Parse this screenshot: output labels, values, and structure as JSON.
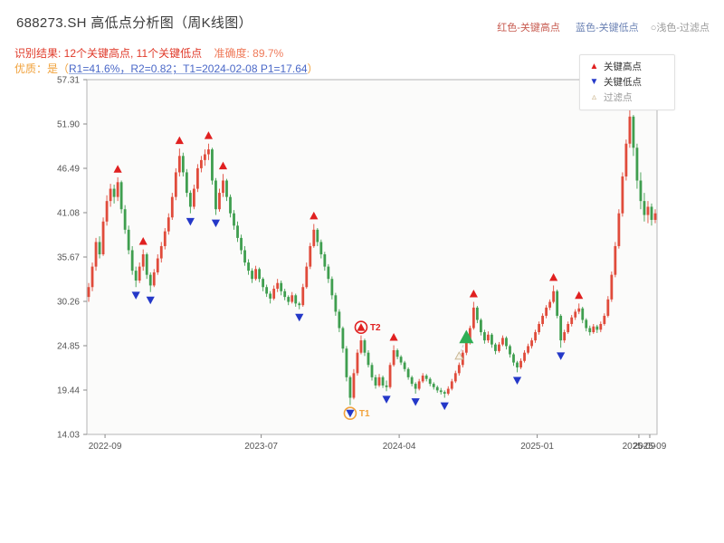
{
  "header": {
    "title": "688273.SH 高低点分析图（周K线图）",
    "color_legend": {
      "high": "红色-关键高点",
      "low": "蓝色-关键低点",
      "filter": "○浅色-过滤点"
    },
    "result": {
      "summary": "识别结果: 12个关键高点, 11个关键低点",
      "accuracy": "准确度: 89.7%"
    },
    "quality": {
      "prefix": "优质：是（",
      "detail": "R1=41.6%，R2=0.82；T1=2024-02-08 P1=17.64",
      "suffix": "）"
    }
  },
  "legend_box": {
    "high": "关键高点",
    "low": "关键低点",
    "filter": "过滤点"
  },
  "chart_data": {
    "type": "candlestick",
    "title": "688273.SH 高低点分析图（周K线图）",
    "interval": "weekly",
    "ylim": [
      14.03,
      57.31
    ],
    "y_ticks": [
      57.31,
      51.9,
      46.49,
      41.08,
      35.67,
      30.26,
      24.85,
      19.44,
      14.03
    ],
    "x_ticks": [
      {
        "label": "2022-09",
        "week": 4.5
      },
      {
        "label": "2023-07",
        "week": 47.5
      },
      {
        "label": "2024-04",
        "week": 85.5
      },
      {
        "label": "2025-01",
        "week": 123.5
      },
      {
        "label": "2025-09",
        "week": 151.5
      },
      {
        "label": "2025-09",
        "week": 154.5
      }
    ],
    "candles": [
      [
        30.8,
        32.5,
        30.2,
        32.0
      ],
      [
        32.0,
        35.0,
        31.5,
        34.5
      ],
      [
        34.5,
        38.0,
        34.0,
        37.5
      ],
      [
        37.5,
        38.2,
        35.5,
        36.0
      ],
      [
        36.0,
        40.5,
        35.8,
        40.0
      ],
      [
        40.0,
        43.2,
        39.5,
        42.5
      ],
      [
        42.5,
        44.6,
        41.8,
        44.0
      ],
      [
        44.0,
        44.5,
        42.2,
        43.0
      ],
      [
        43.0,
        45.4,
        42.5,
        44.8
      ],
      [
        44.8,
        45.0,
        41.0,
        41.5
      ],
      [
        41.5,
        42.0,
        38.5,
        39.0
      ],
      [
        39.0,
        39.5,
        36.0,
        36.5
      ],
      [
        36.5,
        37.0,
        33.5,
        34.0
      ],
      [
        34.0,
        34.5,
        32.0,
        32.8
      ],
      [
        32.8,
        35.0,
        32.5,
        34.5
      ],
      [
        34.5,
        36.6,
        34.0,
        36.0
      ],
      [
        36.0,
        36.2,
        33.0,
        33.5
      ],
      [
        33.5,
        33.8,
        31.4,
        32.2
      ],
      [
        32.2,
        34.2,
        32.0,
        33.8
      ],
      [
        33.8,
        36.0,
        33.5,
        35.5
      ],
      [
        35.5,
        37.5,
        35.0,
        37.0
      ],
      [
        37.0,
        39.2,
        36.6,
        38.8
      ],
      [
        38.8,
        41.0,
        38.4,
        40.5
      ],
      [
        40.5,
        43.5,
        40.2,
        43.0
      ],
      [
        43.0,
        46.5,
        42.6,
        46.0
      ],
      [
        46.0,
        48.9,
        45.5,
        48.0
      ],
      [
        48.0,
        48.4,
        45.5,
        46.0
      ],
      [
        46.0,
        46.4,
        43.0,
        43.5
      ],
      [
        43.5,
        43.8,
        41.0,
        41.8
      ],
      [
        41.8,
        44.5,
        41.5,
        44.0
      ],
      [
        44.0,
        47.0,
        43.6,
        46.5
      ],
      [
        46.5,
        48.0,
        46.0,
        47.5
      ],
      [
        47.5,
        48.8,
        46.8,
        48.2
      ],
      [
        48.2,
        49.5,
        47.5,
        48.8
      ],
      [
        48.8,
        49.0,
        44.5,
        45.0
      ],
      [
        45.0,
        45.3,
        40.8,
        41.5
      ],
      [
        41.5,
        44.0,
        41.2,
        43.5
      ],
      [
        43.5,
        45.8,
        43.0,
        45.0
      ],
      [
        45.0,
        45.2,
        42.5,
        43.0
      ],
      [
        43.0,
        43.3,
        40.5,
        41.0
      ],
      [
        41.0,
        41.4,
        39.0,
        39.5
      ],
      [
        39.5,
        40.0,
        37.5,
        38.0
      ],
      [
        38.0,
        38.4,
        36.0,
        36.5
      ],
      [
        36.5,
        37.0,
        34.6,
        35.0
      ],
      [
        35.0,
        35.4,
        33.5,
        34.0
      ],
      [
        34.0,
        34.3,
        32.5,
        33.0
      ],
      [
        33.0,
        34.6,
        32.8,
        34.2
      ],
      [
        34.2,
        34.4,
        32.6,
        33.0
      ],
      [
        33.0,
        33.2,
        31.5,
        32.0
      ],
      [
        32.0,
        32.3,
        30.8,
        31.2
      ],
      [
        31.2,
        31.5,
        30.0,
        30.6
      ],
      [
        30.6,
        32.2,
        30.4,
        31.8
      ],
      [
        31.8,
        33.0,
        31.4,
        32.5
      ],
      [
        32.5,
        32.8,
        31.0,
        31.5
      ],
      [
        31.5,
        31.8,
        30.4,
        30.8
      ],
      [
        30.8,
        31.0,
        29.8,
        30.2
      ],
      [
        30.2,
        31.4,
        30.0,
        31.0
      ],
      [
        31.0,
        31.2,
        29.6,
        30.0
      ],
      [
        30.0,
        30.2,
        29.3,
        29.8
      ],
      [
        29.8,
        32.4,
        29.6,
        32.0
      ],
      [
        32.0,
        35.0,
        31.8,
        34.5
      ],
      [
        34.5,
        37.4,
        34.2,
        37.0
      ],
      [
        37.0,
        39.7,
        36.8,
        39.0
      ],
      [
        39.0,
        39.2,
        37.0,
        37.5
      ],
      [
        37.5,
        37.8,
        35.5,
        36.0
      ],
      [
        36.0,
        36.3,
        34.0,
        34.5
      ],
      [
        34.5,
        34.8,
        32.5,
        33.0
      ],
      [
        33.0,
        33.3,
        30.5,
        31.0
      ],
      [
        31.0,
        31.3,
        28.5,
        29.0
      ],
      [
        29.0,
        29.3,
        26.5,
        27.0
      ],
      [
        27.0,
        27.2,
        24.0,
        24.5
      ],
      [
        24.5,
        24.8,
        20.5,
        21.0
      ],
      [
        21.0,
        21.2,
        17.6,
        18.5
      ],
      [
        18.5,
        22.0,
        18.3,
        21.5
      ],
      [
        21.5,
        24.4,
        21.2,
        24.0
      ],
      [
        24.0,
        26.1,
        23.8,
        25.5
      ],
      [
        25.5,
        25.7,
        23.6,
        24.0
      ],
      [
        24.0,
        24.3,
        22.2,
        22.5
      ],
      [
        22.5,
        22.8,
        20.6,
        21.0
      ],
      [
        21.0,
        21.3,
        19.6,
        20.0
      ],
      [
        20.0,
        21.4,
        19.8,
        21.0
      ],
      [
        21.0,
        21.2,
        19.7,
        20.0
      ],
      [
        20.0,
        20.6,
        19.3,
        19.8
      ],
      [
        19.8,
        22.8,
        19.6,
        22.5
      ],
      [
        22.5,
        24.9,
        22.3,
        24.3
      ],
      [
        24.3,
        24.5,
        23.2,
        23.5
      ],
      [
        23.5,
        23.7,
        22.5,
        22.8
      ],
      [
        22.8,
        23.0,
        21.7,
        22.0
      ],
      [
        22.0,
        22.2,
        20.7,
        21.0
      ],
      [
        21.0,
        21.2,
        19.9,
        20.2
      ],
      [
        20.2,
        20.4,
        19.0,
        19.6
      ],
      [
        19.6,
        20.8,
        19.4,
        20.5
      ],
      [
        20.5,
        21.5,
        20.3,
        21.2
      ],
      [
        21.2,
        21.4,
        20.5,
        20.8
      ],
      [
        20.8,
        21.0,
        19.9,
        20.2
      ],
      [
        20.2,
        20.4,
        19.5,
        19.8
      ],
      [
        19.8,
        20.0,
        19.1,
        19.4
      ],
      [
        19.4,
        19.7,
        18.9,
        19.2
      ],
      [
        19.2,
        19.4,
        18.5,
        19.0
      ],
      [
        19.0,
        19.9,
        18.8,
        19.6
      ],
      [
        19.6,
        20.8,
        19.4,
        20.5
      ],
      [
        20.5,
        21.8,
        20.3,
        21.5
      ],
      [
        21.5,
        22.8,
        21.2,
        22.5
      ],
      [
        22.5,
        24.3,
        22.2,
        24.0
      ],
      [
        24.0,
        25.5,
        23.7,
        25.2
      ],
      [
        25.2,
        27.3,
        25.0,
        27.0
      ],
      [
        27.0,
        30.2,
        26.8,
        29.5
      ],
      [
        29.5,
        29.7,
        27.6,
        28.0
      ],
      [
        28.0,
        28.2,
        26.1,
        26.5
      ],
      [
        26.5,
        26.8,
        25.1,
        25.5
      ],
      [
        25.5,
        26.6,
        25.2,
        26.2
      ],
      [
        26.2,
        26.4,
        24.6,
        25.0
      ],
      [
        25.0,
        25.2,
        23.8,
        24.2
      ],
      [
        24.2,
        25.3,
        24.0,
        25.0
      ],
      [
        25.0,
        26.1,
        24.8,
        25.8
      ],
      [
        25.8,
        26.0,
        24.4,
        24.8
      ],
      [
        24.8,
        25.0,
        23.4,
        23.8
      ],
      [
        23.8,
        24.0,
        22.4,
        22.8
      ],
      [
        22.8,
        23.0,
        21.6,
        22.2
      ],
      [
        22.2,
        23.3,
        22.0,
        23.0
      ],
      [
        23.0,
        24.3,
        22.8,
        24.0
      ],
      [
        24.0,
        25.1,
        23.8,
        24.8
      ],
      [
        24.8,
        25.8,
        24.5,
        25.5
      ],
      [
        25.5,
        26.8,
        25.2,
        26.5
      ],
      [
        26.5,
        27.8,
        26.2,
        27.5
      ],
      [
        27.5,
        28.8,
        27.2,
        28.5
      ],
      [
        28.5,
        29.8,
        28.2,
        29.5
      ],
      [
        29.5,
        30.5,
        29.2,
        30.2
      ],
      [
        30.2,
        32.2,
        30.0,
        31.5
      ],
      [
        31.5,
        31.7,
        28.2,
        28.5
      ],
      [
        28.5,
        28.7,
        24.6,
        25.5
      ],
      [
        25.5,
        26.8,
        25.2,
        26.5
      ],
      [
        26.5,
        27.8,
        26.3,
        27.5
      ],
      [
        27.5,
        28.6,
        27.2,
        28.3
      ],
      [
        28.3,
        29.3,
        28.0,
        29.0
      ],
      [
        29.0,
        30.0,
        28.7,
        29.4
      ],
      [
        29.4,
        29.6,
        27.6,
        28.0
      ],
      [
        28.0,
        28.2,
        26.6,
        27.0
      ],
      [
        27.0,
        27.3,
        26.1,
        26.5
      ],
      [
        26.5,
        27.5,
        26.3,
        27.2
      ],
      [
        27.2,
        27.4,
        26.4,
        26.8
      ],
      [
        26.8,
        27.8,
        26.5,
        27.5
      ],
      [
        27.5,
        28.8,
        27.3,
        28.5
      ],
      [
        28.5,
        30.9,
        28.3,
        30.5
      ],
      [
        30.5,
        33.9,
        30.2,
        33.5
      ],
      [
        33.5,
        37.5,
        33.2,
        37.0
      ],
      [
        37.0,
        41.5,
        36.7,
        41.0
      ],
      [
        41.0,
        46.0,
        40.6,
        45.5
      ],
      [
        45.5,
        50.0,
        45.0,
        49.5
      ],
      [
        49.5,
        53.6,
        49.0,
        52.8
      ],
      [
        52.8,
        53.0,
        48.0,
        49.0
      ],
      [
        49.0,
        49.5,
        44.0,
        45.0
      ],
      [
        45.0,
        46.0,
        41.5,
        42.5
      ],
      [
        42.5,
        43.5,
        40.0,
        40.8
      ],
      [
        40.8,
        42.5,
        39.8,
        41.8
      ],
      [
        41.8,
        42.2,
        39.5,
        40.2
      ],
      [
        40.2,
        41.5,
        39.8,
        41.0
      ]
    ],
    "key_highs": [
      8,
      15,
      25,
      33,
      37,
      62,
      75,
      84,
      106,
      128,
      135,
      149
    ],
    "key_lows": [
      13,
      17,
      28,
      35,
      58,
      72,
      82,
      90,
      98,
      118,
      130
    ],
    "annotations": {
      "t1": {
        "week": 72,
        "label": "T1",
        "price": 17.64,
        "date": "2024-02-08"
      },
      "t2": {
        "week": 75,
        "label": "T2"
      },
      "entry": {
        "week": 104,
        "price": 25.9
      },
      "filtered": {
        "week": 102,
        "price": 23.6
      }
    },
    "colors": {
      "up": "#e04b3b",
      "down": "#3f9e4f",
      "high_marker": "#e02020",
      "low_marker": "#2438c8",
      "entry": "#2fae55",
      "filtered_fill": "#f8f3e8",
      "filtered_stroke": "#c8b795",
      "t1_circle": "#f2a33c",
      "t2_circle": "#e02020"
    }
  }
}
